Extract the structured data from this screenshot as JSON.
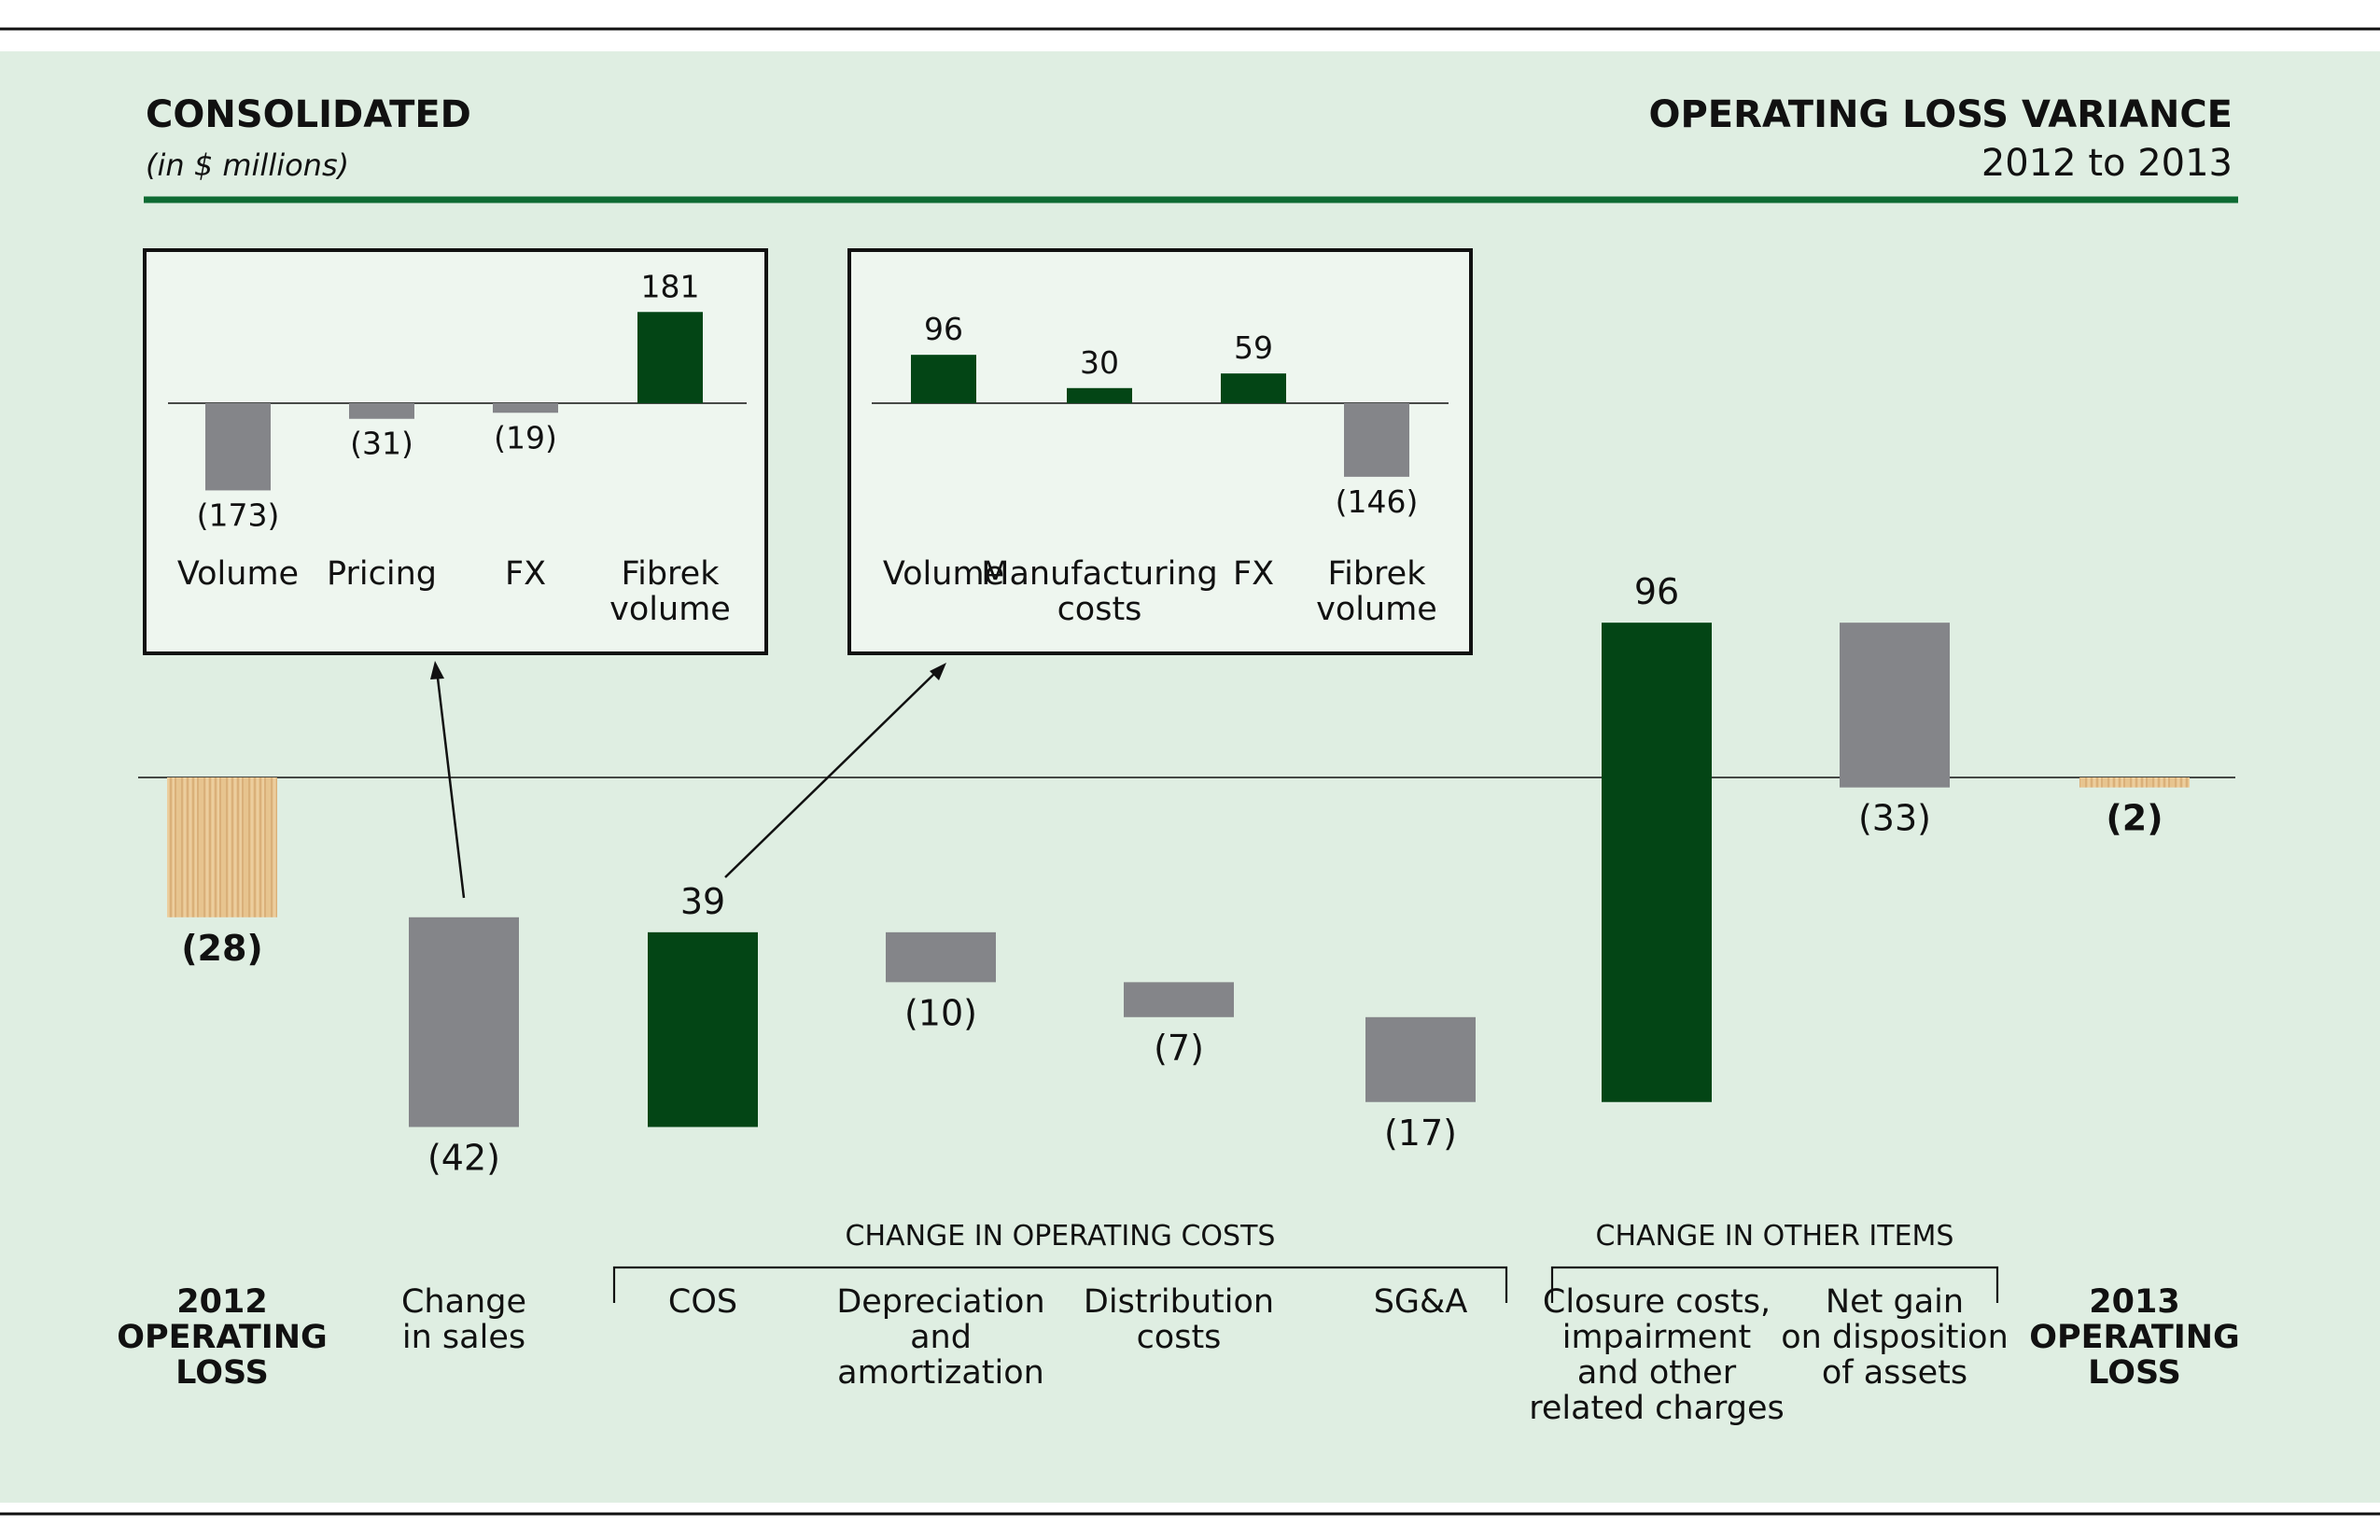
{
  "header": {
    "title_left": "CONSOLIDATED",
    "subtitle_left": "(in $ millions)",
    "title_right": "OPERATING LOSS VARIANCE",
    "subtitle_right": "2012 to 2013"
  },
  "colors": {
    "background": "#dfeee2",
    "positive": "#034515",
    "negative": "#848589",
    "total": "#e4bf8e",
    "rule": "#0e6b33"
  },
  "chart_data": [
    {
      "type": "bar",
      "subtype": "waterfall",
      "categories": [
        [
          "2012",
          "OPERATING",
          "LOSS"
        ],
        [
          "Change",
          "in sales"
        ],
        [
          "COS"
        ],
        [
          "Depreciation",
          "and",
          "amortization"
        ],
        [
          "Distribution",
          "costs"
        ],
        [
          "SG&A"
        ],
        [
          "Closure costs,",
          "impairment",
          "and other",
          "related charges"
        ],
        [
          "Net gain",
          "on disposition",
          "of assets"
        ],
        [
          "2013",
          "OPERATING",
          "LOSS"
        ]
      ],
      "values": [
        -28,
        -42,
        39,
        -10,
        -7,
        -17,
        96,
        -33,
        -2
      ],
      "value_labels": [
        "(28)",
        "(42)",
        "39",
        "(10)",
        "(7)",
        "(17)",
        "96",
        "(33)",
        "(2)"
      ],
      "kinds": [
        "total",
        "delta",
        "delta",
        "delta",
        "delta",
        "delta",
        "delta",
        "delta",
        "total"
      ],
      "groups": [
        {
          "label": "CHANGE IN OPERATING COSTS",
          "from": 2,
          "to": 5
        },
        {
          "label": "CHANGE IN OTHER ITEMS",
          "from": 6,
          "to": 7
        }
      ]
    },
    {
      "type": "bar",
      "breakdown_of": "Change in sales",
      "categories": [
        [
          "Volume"
        ],
        [
          "Pricing"
        ],
        [
          "FX"
        ],
        [
          "Fibrek",
          "volume"
        ]
      ],
      "values": [
        -173,
        -31,
        -19,
        181
      ],
      "value_labels": [
        "(173)",
        "(31)",
        "(19)",
        "181"
      ]
    },
    {
      "type": "bar",
      "breakdown_of": "COS",
      "categories": [
        [
          "Volume"
        ],
        [
          "Manufacturing",
          "costs"
        ],
        [
          "FX"
        ],
        [
          "Fibrek",
          "volume"
        ]
      ],
      "values": [
        96,
        30,
        59,
        -146
      ],
      "value_labels": [
        "96",
        "30",
        "59",
        "(146)"
      ]
    }
  ]
}
